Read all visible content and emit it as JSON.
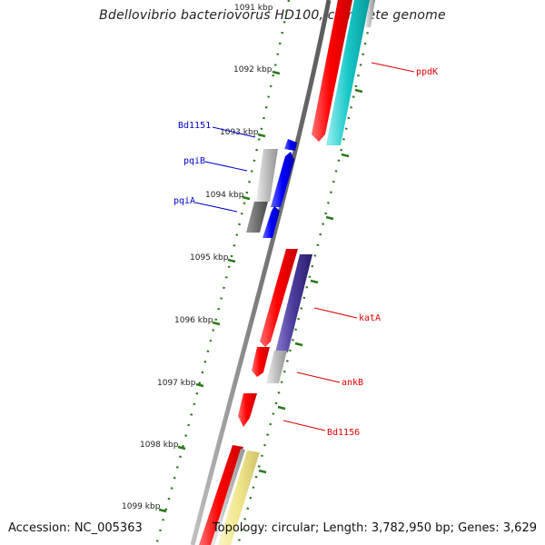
{
  "title": "Bdellovibrio bacteriovorus HD100, complete genome",
  "footer": {
    "accession": "Accession: NC_005363",
    "summary": "Topology: circular; Length: 3,782,950 bp; Genes: 3,629"
  },
  "scale": {
    "tick_labels": [
      "1091 kbp",
      "1092 kbp",
      "1093 kbp",
      "1094 kbp",
      "1095 kbp",
      "1096 kbp",
      "1097 kbp",
      "1098 kbp",
      "1099 kbp"
    ]
  },
  "gene_labels": [
    {
      "text": "ppdK",
      "color": "#e00000"
    },
    {
      "text": "Bd1151",
      "color": "#0000cc"
    },
    {
      "text": "pqiB",
      "color": "#0000cc"
    },
    {
      "text": "pqiA",
      "color": "#0000cc"
    },
    {
      "text": "katA",
      "color": "#e00000"
    },
    {
      "text": "ankB",
      "color": "#e00000"
    },
    {
      "text": "Bd1156",
      "color": "#e00000"
    }
  ],
  "colors": {
    "backbone": "#808080",
    "tick_green": "#2a7a1a",
    "cds_red": "#ff0000",
    "cds_cyan": "#18c8c8",
    "cds_blue": "#0000ff",
    "cds_purple": "#4a3a9a",
    "cds_gray": "#b8b8b8",
    "cds_darkgray": "#707070",
    "cds_yellow": "#f0e68c"
  }
}
